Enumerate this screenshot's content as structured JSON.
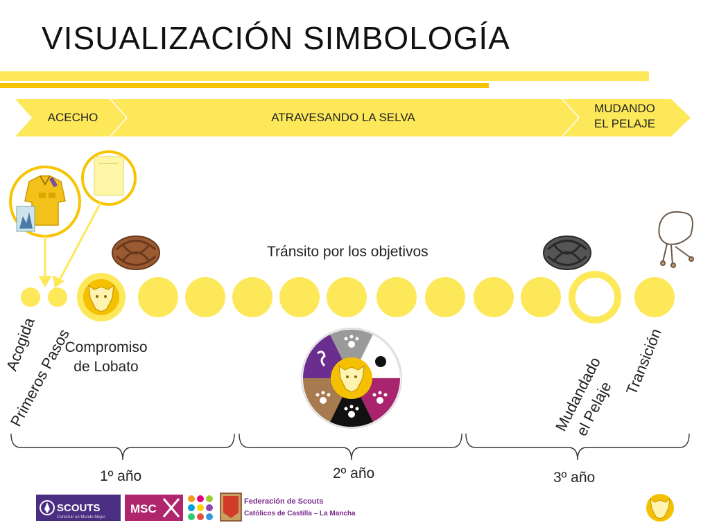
{
  "title": "VISUALIZACIÓN SIMBOLOGÍA",
  "phases": [
    {
      "label": "ACECHO"
    },
    {
      "label": "ATRAVESANDO LA SELVA"
    },
    {
      "label_line1": "MUDANDO",
      "label_line2": "EL PELAJE"
    }
  ],
  "transit_label": "Tránsito por los objetivos",
  "milestones": {
    "acogida": "Acogida",
    "primeros_pasos": "Primeros Pasos",
    "compromiso_line1": "Compromiso",
    "compromiso_line2": "de Lobato",
    "mudando_line1": "Mudandado",
    "mudando_line2": "el Pelaje",
    "transicion": "Transición"
  },
  "years": [
    "1º año",
    "2º año",
    "3º año"
  ],
  "logos": {
    "scouts": "SCOUTS",
    "scouts_tagline": "Construir un Mundo Mejor",
    "msc": "MSC",
    "federacion_line1": "Federación de Scouts",
    "federacion_line2": "Católicos de Castilla – La Mancha"
  },
  "colors": {
    "yellow": "#fde85a",
    "gold": "#f8c400",
    "purple": "#6a2e8e",
    "magenta": "#a8246e",
    "brown": "#a87a4f",
    "grey": "#9a9a9a",
    "black": "#111111",
    "knot_brown": "#9a5a32",
    "knot_grey": "#555555"
  }
}
